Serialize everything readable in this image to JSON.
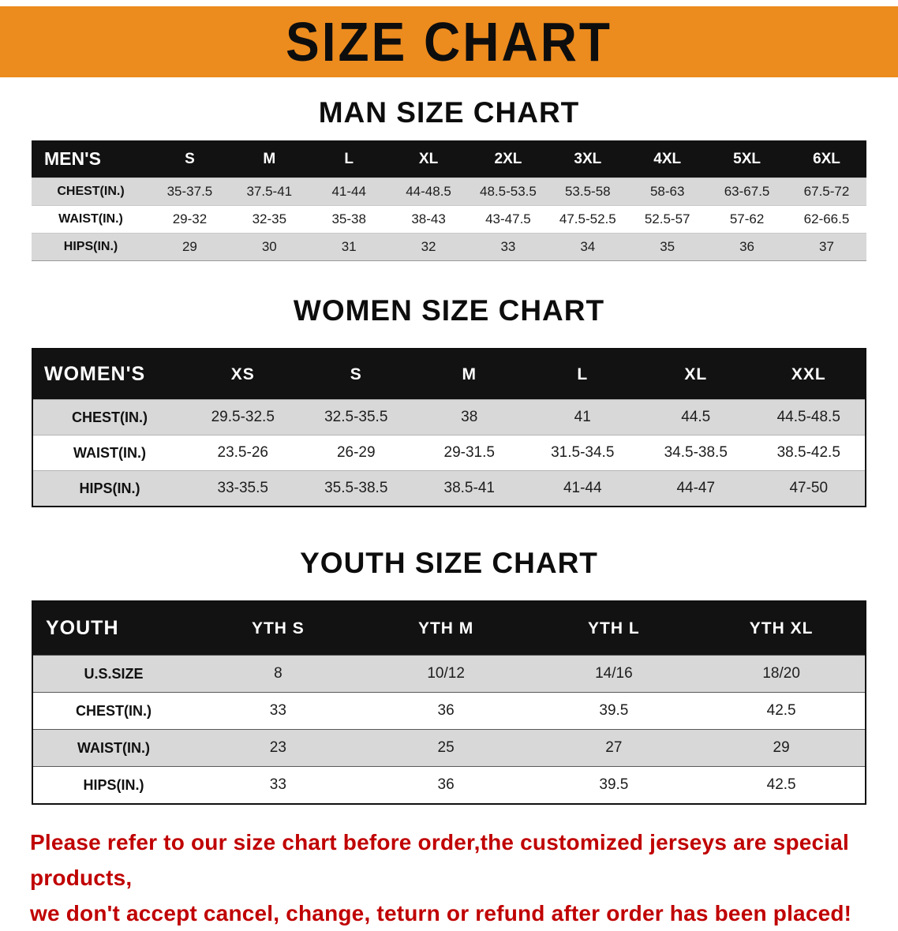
{
  "banner": {
    "title": "SIZE CHART"
  },
  "men": {
    "heading": "MAN SIZE CHART",
    "table": {
      "header": [
        "MEN'S",
        "S",
        "M",
        "L",
        "XL",
        "2XL",
        "3XL",
        "4XL",
        "5XL",
        "6XL"
      ],
      "rows": [
        [
          "CHEST(IN.)",
          "35-37.5",
          "37.5-41",
          "41-44",
          "44-48.5",
          "48.5-53.5",
          "53.5-58",
          "58-63",
          "63-67.5",
          "67.5-72"
        ],
        [
          "WAIST(IN.)",
          "29-32",
          "32-35",
          "35-38",
          "38-43",
          "43-47.5",
          "47.5-52.5",
          "52.5-57",
          "57-62",
          "62-66.5"
        ],
        [
          "HIPS(IN.)",
          "29",
          "30",
          "31",
          "32",
          "33",
          "34",
          "35",
          "36",
          "37"
        ]
      ]
    }
  },
  "women": {
    "heading": "WOMEN SIZE CHART",
    "table": {
      "header": [
        "WOMEN'S",
        "XS",
        "S",
        "M",
        "L",
        "XL",
        "XXL"
      ],
      "rows": [
        [
          "CHEST(IN.)",
          "29.5-32.5",
          "32.5-35.5",
          "38",
          "41",
          "44.5",
          "44.5-48.5"
        ],
        [
          "WAIST(IN.)",
          "23.5-26",
          "26-29",
          "29-31.5",
          "31.5-34.5",
          "34.5-38.5",
          "38.5-42.5"
        ],
        [
          "HIPS(IN.)",
          "33-35.5",
          "35.5-38.5",
          "38.5-41",
          "41-44",
          "44-47",
          "47-50"
        ]
      ]
    }
  },
  "youth": {
    "heading": "YOUTH SIZE CHART",
    "table": {
      "header": [
        "YOUTH",
        "YTH S",
        "YTH M",
        "YTH L",
        "YTH XL"
      ],
      "rows": [
        [
          "U.S.SIZE",
          "8",
          "10/12",
          "14/16",
          "18/20"
        ],
        [
          "CHEST(IN.)",
          "33",
          "36",
          "39.5",
          "42.5"
        ],
        [
          "WAIST(IN.)",
          "23",
          "25",
          "27",
          "29"
        ],
        [
          "HIPS(IN.)",
          "33",
          "36",
          "39.5",
          "42.5"
        ]
      ]
    }
  },
  "footer": {
    "lines": [
      "Please refer to our size chart before order,the customized jerseys are special products,",
      "we don't accept cancel, change, teturn or refund after order has been placed!"
    ]
  },
  "colors": {
    "banner_bg": "#EC8B1E",
    "table_header_bg": "#121212",
    "stripe_bg": "#D8D8D8",
    "notice_color": "#C00000"
  }
}
